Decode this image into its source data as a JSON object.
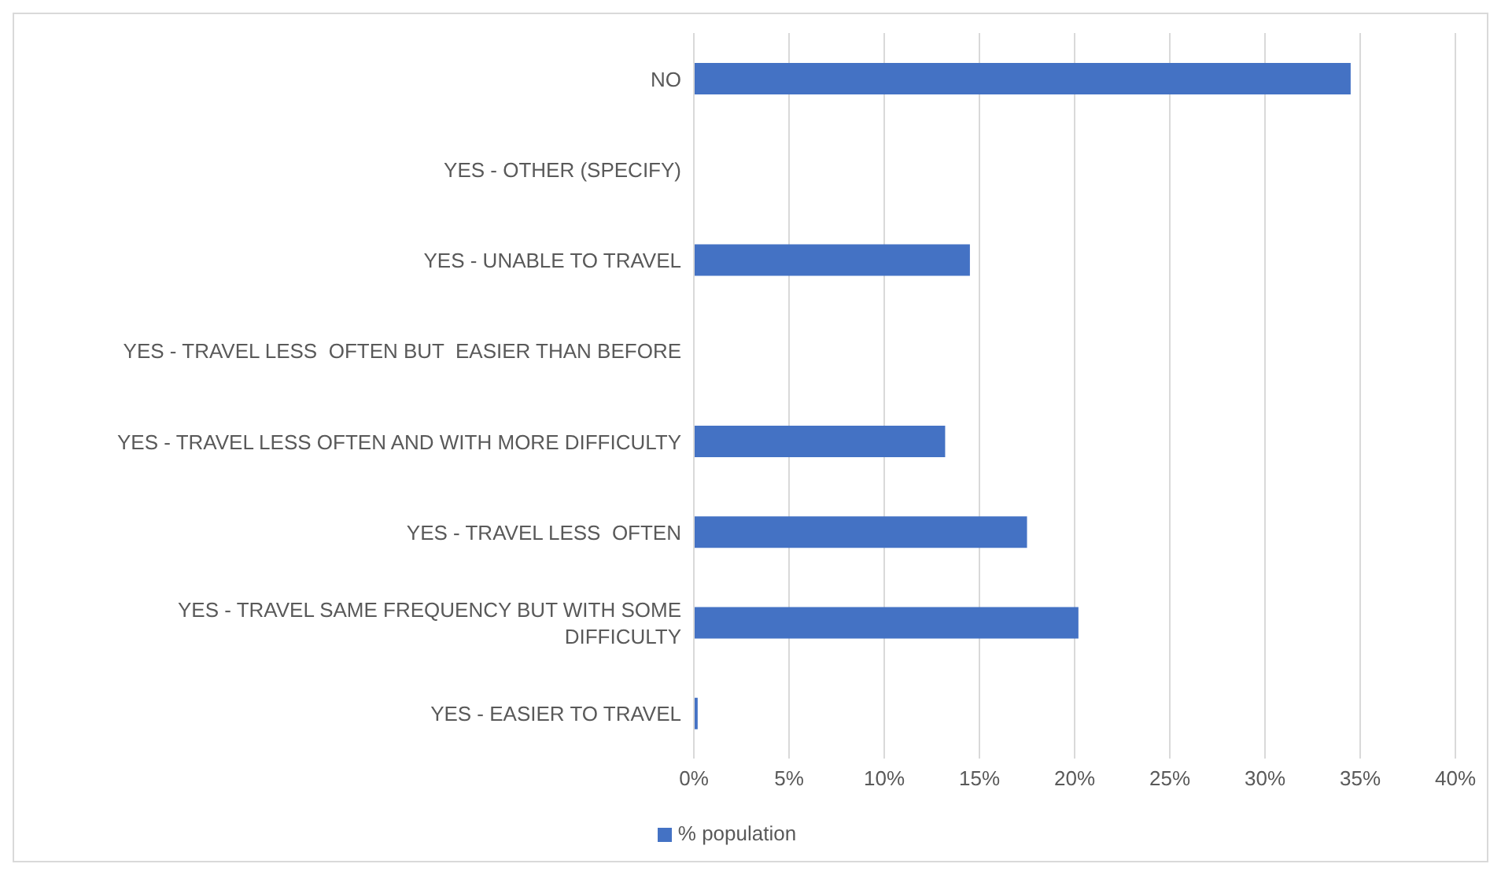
{
  "chart_data": {
    "type": "bar",
    "orientation": "horizontal",
    "categories": [
      "NO",
      "YES - OTHER (SPECIFY)",
      "YES - UNABLE TO TRAVEL",
      "YES - TRAVEL LESS  OFTEN BUT  EASIER THAN BEFORE",
      "YES - TRAVEL LESS OFTEN AND WITH MORE DIFFICULTY",
      "YES - TRAVEL LESS  OFTEN",
      "YES - TRAVEL SAME FREQUENCY BUT WITH SOME DIFFICULTY",
      "YES - EASIER TO TRAVEL"
    ],
    "series": [
      {
        "name": "% population",
        "color": "#4472c4",
        "values": [
          34.5,
          0,
          14.5,
          0,
          13.2,
          17.5,
          20.2,
          0.2
        ]
      }
    ],
    "xlim": [
      0,
      40
    ],
    "xticks": [
      {
        "value": 0,
        "label": "0%"
      },
      {
        "value": 5,
        "label": "5%"
      },
      {
        "value": 10,
        "label": "10%"
      },
      {
        "value": 15,
        "label": "15%"
      },
      {
        "value": 20,
        "label": "20%"
      },
      {
        "value": 25,
        "label": "25%"
      },
      {
        "value": 30,
        "label": "30%"
      },
      {
        "value": 35,
        "label": "35%"
      },
      {
        "value": 40,
        "label": "40%"
      }
    ],
    "grid": "x",
    "legend": "bottom"
  }
}
